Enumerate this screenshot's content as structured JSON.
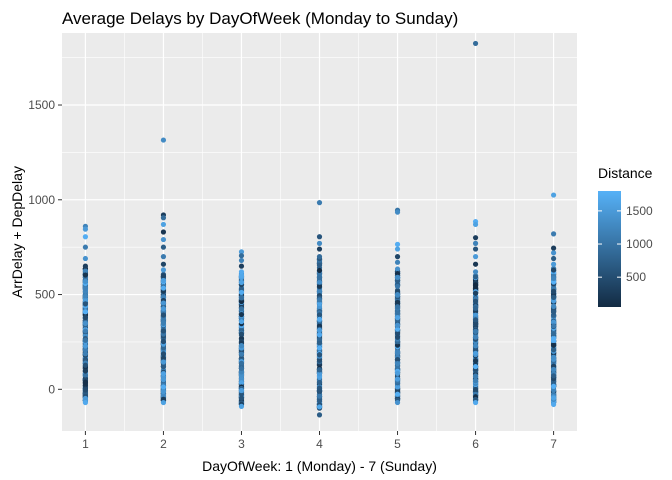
{
  "chart_data": {
    "type": "scatter",
    "title": "Average Delays by DayOfWeek (Monday to Sunday)",
    "xlabel": "DayOfWeek: 1 (Monday) - 7 (Sunday)",
    "ylabel": "ArrDelay + DepDelay",
    "x_ticks": [
      "1",
      "2",
      "3",
      "4",
      "5",
      "6",
      "7"
    ],
    "y_ticks": [
      0,
      500,
      1000,
      1500
    ],
    "xlim": [
      0.7,
      7.3
    ],
    "ylim": [
      -220,
      1880
    ],
    "grid": true,
    "legend": {
      "title": "Distance",
      "position": "right",
      "ticks": [
        500,
        1000,
        1500
      ],
      "range": [
        50,
        1800
      ],
      "color_low": "#132b43",
      "color_high": "#56b1f7"
    },
    "points": [
      {
        "x": 1,
        "y": 860,
        "distance": 1200
      },
      {
        "x": 1,
        "y": 845,
        "distance": 1500
      },
      {
        "x": 1,
        "y": 805,
        "distance": 1750
      },
      {
        "x": 1,
        "y": 750,
        "distance": 1100
      },
      {
        "x": 1,
        "y": 690,
        "distance": 1400
      },
      {
        "x": 1,
        "y": 650,
        "distance": 300
      },
      {
        "x": 1,
        "y": -70,
        "distance": 1700
      },
      {
        "x": 2,
        "y": 1315,
        "distance": 1300
      },
      {
        "x": 2,
        "y": 920,
        "distance": 300
      },
      {
        "x": 2,
        "y": 905,
        "distance": 900
      },
      {
        "x": 2,
        "y": 870,
        "distance": 1600
      },
      {
        "x": 2,
        "y": 830,
        "distance": 200
      },
      {
        "x": 2,
        "y": 790,
        "distance": 1400
      },
      {
        "x": 2,
        "y": 750,
        "distance": 700
      },
      {
        "x": 2,
        "y": 700,
        "distance": 1100
      },
      {
        "x": 2,
        "y": 660,
        "distance": 400
      },
      {
        "x": 2,
        "y": 630,
        "distance": 1500
      },
      {
        "x": 2,
        "y": -70,
        "distance": 1600
      },
      {
        "x": 3,
        "y": 725,
        "distance": 1500
      },
      {
        "x": 3,
        "y": 705,
        "distance": 900
      },
      {
        "x": 3,
        "y": 680,
        "distance": 1200
      },
      {
        "x": 3,
        "y": 650,
        "distance": 300
      },
      {
        "x": 3,
        "y": 620,
        "distance": 1700
      },
      {
        "x": 3,
        "y": -90,
        "distance": 1600
      },
      {
        "x": 4,
        "y": 985,
        "distance": 1100
      },
      {
        "x": 4,
        "y": 805,
        "distance": 600
      },
      {
        "x": 4,
        "y": 770,
        "distance": 1300
      },
      {
        "x": 4,
        "y": 740,
        "distance": 300
      },
      {
        "x": 4,
        "y": 700,
        "distance": 900
      },
      {
        "x": 4,
        "y": -135,
        "distance": 700
      },
      {
        "x": 5,
        "y": 945,
        "distance": 1000
      },
      {
        "x": 5,
        "y": 935,
        "distance": 1300
      },
      {
        "x": 5,
        "y": 765,
        "distance": 1750
      },
      {
        "x": 5,
        "y": 740,
        "distance": 1600
      },
      {
        "x": 5,
        "y": 700,
        "distance": 400
      },
      {
        "x": 5,
        "y": 670,
        "distance": 1200
      },
      {
        "x": 5,
        "y": -70,
        "distance": 1400
      },
      {
        "x": 6,
        "y": 1825,
        "distance": 900
      },
      {
        "x": 6,
        "y": 885,
        "distance": 1750
      },
      {
        "x": 6,
        "y": 870,
        "distance": 1600
      },
      {
        "x": 6,
        "y": 800,
        "distance": 300
      },
      {
        "x": 6,
        "y": 770,
        "distance": 1200
      },
      {
        "x": 6,
        "y": 740,
        "distance": 600
      },
      {
        "x": 6,
        "y": 700,
        "distance": 1500
      },
      {
        "x": 6,
        "y": 660,
        "distance": 200
      },
      {
        "x": 6,
        "y": 620,
        "distance": 1300
      },
      {
        "x": 6,
        "y": -70,
        "distance": 1700
      },
      {
        "x": 7,
        "y": 1025,
        "distance": 1600
      },
      {
        "x": 7,
        "y": 820,
        "distance": 1100
      },
      {
        "x": 7,
        "y": 745,
        "distance": 300
      },
      {
        "x": 7,
        "y": 720,
        "distance": 1400
      },
      {
        "x": 7,
        "y": 690,
        "distance": 700
      },
      {
        "x": 7,
        "y": 660,
        "distance": 1500
      },
      {
        "x": 7,
        "y": -80,
        "distance": 1700
      }
    ],
    "dense_range": {
      "1": [
        -60,
        640
      ],
      "2": [
        -60,
        610
      ],
      "3": [
        -80,
        610
      ],
      "4": [
        -100,
        690
      ],
      "5": [
        -60,
        640
      ],
      "6": [
        -60,
        600
      ],
      "7": [
        -70,
        640
      ]
    }
  }
}
